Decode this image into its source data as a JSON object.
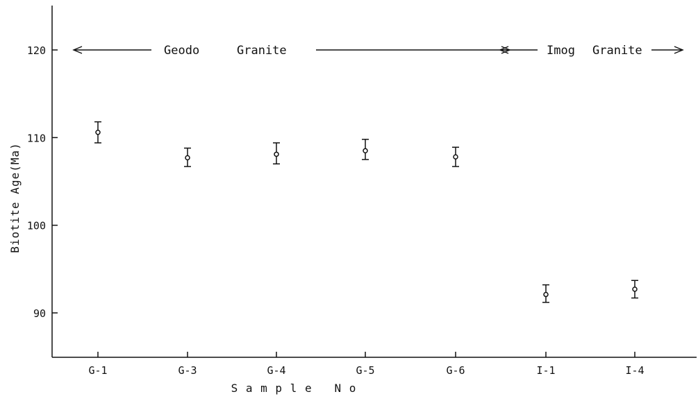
{
  "chart_data": {
    "type": "scatter",
    "error_bars": true,
    "title": "",
    "xlabel": "S a m p l e   N o",
    "ylabel": "Biotite   Age(Ma)",
    "categories": [
      "G-1",
      "G-3",
      "G-4",
      "G-5",
      "G-6",
      "I-1",
      "I-4"
    ],
    "series": [
      {
        "values": [
          110.6,
          107.7,
          108.1,
          108.5,
          107.8,
          92.1,
          92.7
        ],
        "error_low": [
          109.4,
          106.7,
          107.0,
          107.5,
          106.7,
          91.2,
          91.7
        ],
        "error_high": [
          111.8,
          108.8,
          109.4,
          109.8,
          108.9,
          93.2,
          93.7
        ]
      }
    ],
    "ylim": [
      85,
      125
    ],
    "yticks": [
      90,
      100,
      110,
      120
    ],
    "grid": false,
    "annotations": [
      {
        "text_1": "Geodo",
        "text_2": "Granite",
        "value": 120,
        "from": "G-1",
        "to": "I-1"
      },
      {
        "text_1": "Imog",
        "text_2": "Granite",
        "value": 120,
        "from": "I-1",
        "to": "I-4"
      }
    ]
  }
}
